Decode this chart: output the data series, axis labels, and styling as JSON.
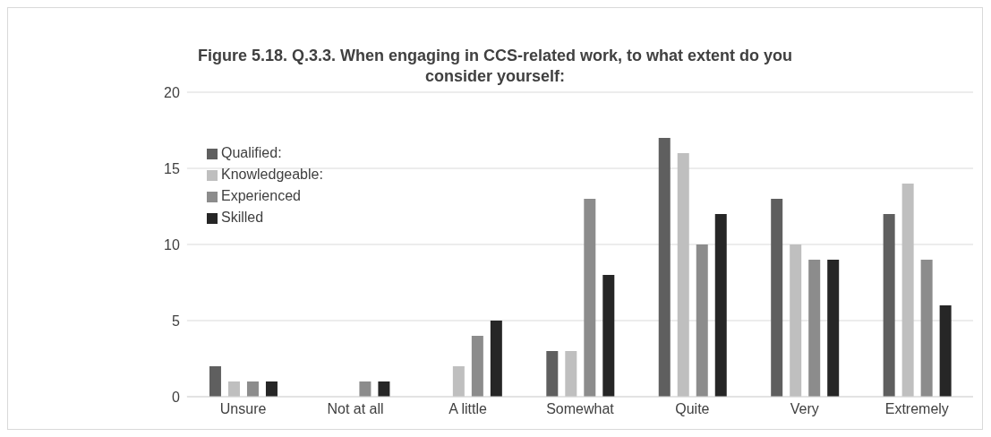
{
  "chart_data": {
    "type": "bar",
    "title": "Figure 5.18. Q.3.3. When engaging in CCS-related work, to what extent do you consider yourself:",
    "categories": [
      "Unsure",
      "Not at all",
      "A little",
      "Somewhat",
      "Quite",
      "Very",
      "Extremely"
    ],
    "series": [
      {
        "name": "Qualified:",
        "color": "#5f5f5f",
        "values": [
          2,
          0,
          0,
          3,
          17,
          13,
          12
        ]
      },
      {
        "name": "Knowledgeable:",
        "color": "#bfbfbf",
        "values": [
          1,
          0,
          2,
          3,
          16,
          10,
          14
        ]
      },
      {
        "name": "Experienced",
        "color": "#8c8c8c",
        "values": [
          1,
          1,
          4,
          13,
          10,
          9,
          9
        ]
      },
      {
        "name": "Skilled",
        "color": "#262626",
        "values": [
          1,
          1,
          5,
          8,
          12,
          9,
          6
        ]
      }
    ],
    "ylim": [
      0,
      20
    ],
    "yticks": [
      0,
      5,
      10,
      15,
      20
    ],
    "grid": "y",
    "legend": "top left"
  }
}
